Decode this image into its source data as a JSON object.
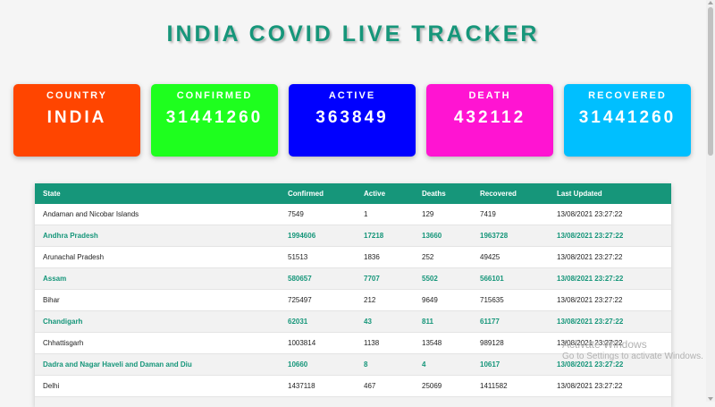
{
  "page_title": "INDIA COVID LIVE TRACKER",
  "cards": [
    {
      "label": "COUNTRY",
      "value": "INDIA",
      "color": "#ff4500"
    },
    {
      "label": "CONFIRMED",
      "value": "31441260",
      "color": "#1eff1e"
    },
    {
      "label": "ACTIVE",
      "value": "363849",
      "color": "#0000ff"
    },
    {
      "label": "DEATH",
      "value": "432112",
      "color": "#ff14d2"
    },
    {
      "label": "RECOVERED",
      "value": "31441260",
      "color": "#00bfff"
    }
  ],
  "table": {
    "headers": [
      "State",
      "Confirmed",
      "Active",
      "Deaths",
      "Recovered",
      "Last Updated"
    ],
    "rows": [
      [
        "Andaman and Nicobar Islands",
        "7549",
        "1",
        "129",
        "7419",
        "13/08/2021 23:27:22"
      ],
      [
        "Andhra Pradesh",
        "1994606",
        "17218",
        "13660",
        "1963728",
        "13/08/2021 23:27:22"
      ],
      [
        "Arunachal Pradesh",
        "51513",
        "1836",
        "252",
        "49425",
        "13/08/2021 23:27:22"
      ],
      [
        "Assam",
        "580657",
        "7707",
        "5502",
        "566101",
        "13/08/2021 23:27:22"
      ],
      [
        "Bihar",
        "725497",
        "212",
        "9649",
        "715635",
        "13/08/2021 23:27:22"
      ],
      [
        "Chandigarh",
        "62031",
        "43",
        "811",
        "61177",
        "13/08/2021 23:27:22"
      ],
      [
        "Chhattisgarh",
        "1003814",
        "1138",
        "13548",
        "989128",
        "13/08/2021 23:27:22"
      ],
      [
        "Dadra and Nagar Haveli and Daman and Diu",
        "10660",
        "8",
        "4",
        "10617",
        "13/08/2021 23:27:22"
      ],
      [
        "Delhi",
        "1437118",
        "467",
        "25069",
        "1411582",
        "13/08/2021 23:27:22"
      ],
      [
        "",
        "",
        "",
        "",
        "",
        ""
      ]
    ]
  },
  "watermark": {
    "line1": "Activate Windows",
    "line2": "Go to Settings to activate Windows."
  },
  "colors": {
    "accent": "#16967a"
  }
}
